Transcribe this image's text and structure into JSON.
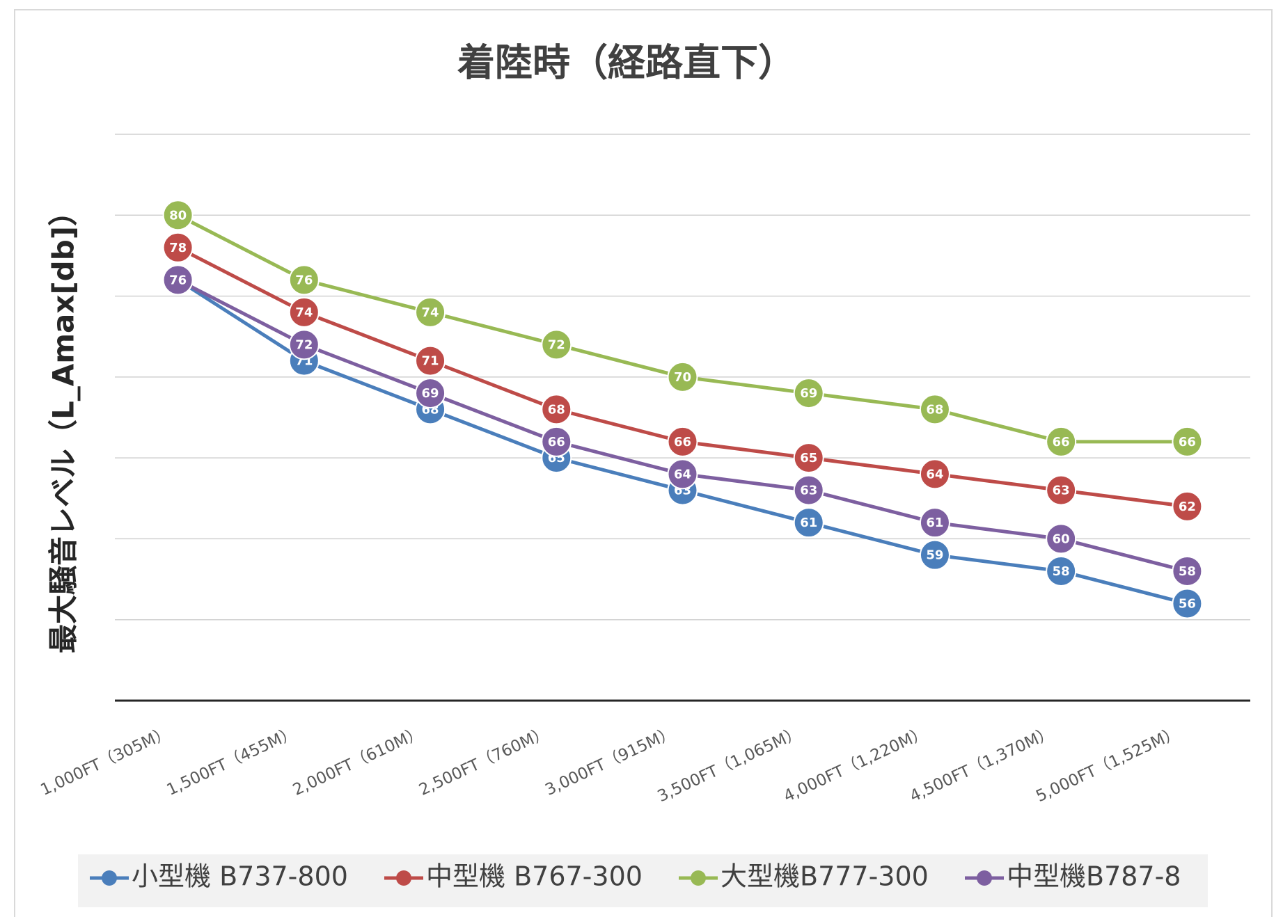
{
  "chart_data": {
    "type": "line",
    "title": "着陸時（経路直下）",
    "y_label": "最大騒音レベル（L_Amax[db]）",
    "categories": [
      "1,000FT（305M）",
      "1,500FT（455M）",
      "2,000FT（610M）",
      "2,500FT（760M）",
      "3,000FT（915M）",
      "3,500FT（1,065M）",
      "4,000FT（1,220M）",
      "4,500FT（1,370M）",
      "5,000FT（1,525M）"
    ],
    "series": [
      {
        "name": "小型機 B737-800",
        "color": "#4a7ebb",
        "values": [
          76,
          71,
          68,
          65,
          63,
          61,
          59,
          58,
          56
        ]
      },
      {
        "name": "中型機 B767-300",
        "color": "#be4b48",
        "values": [
          78,
          74,
          71,
          68,
          66,
          65,
          64,
          63,
          62
        ]
      },
      {
        "name": "大型機B777-300",
        "color": "#98b954",
        "values": [
          80,
          76,
          74,
          72,
          70,
          69,
          68,
          66,
          66
        ]
      },
      {
        "name": "中型機B787-8",
        "color": "#7d5fa0",
        "values": [
          76,
          72,
          69,
          66,
          64,
          63,
          61,
          60,
          58
        ]
      }
    ],
    "ylim": [
      50,
      85
    ],
    "yticks": [
      50,
      55,
      60,
      65,
      70,
      75,
      80,
      85
    ],
    "grid": true,
    "legend": "bottom"
  }
}
